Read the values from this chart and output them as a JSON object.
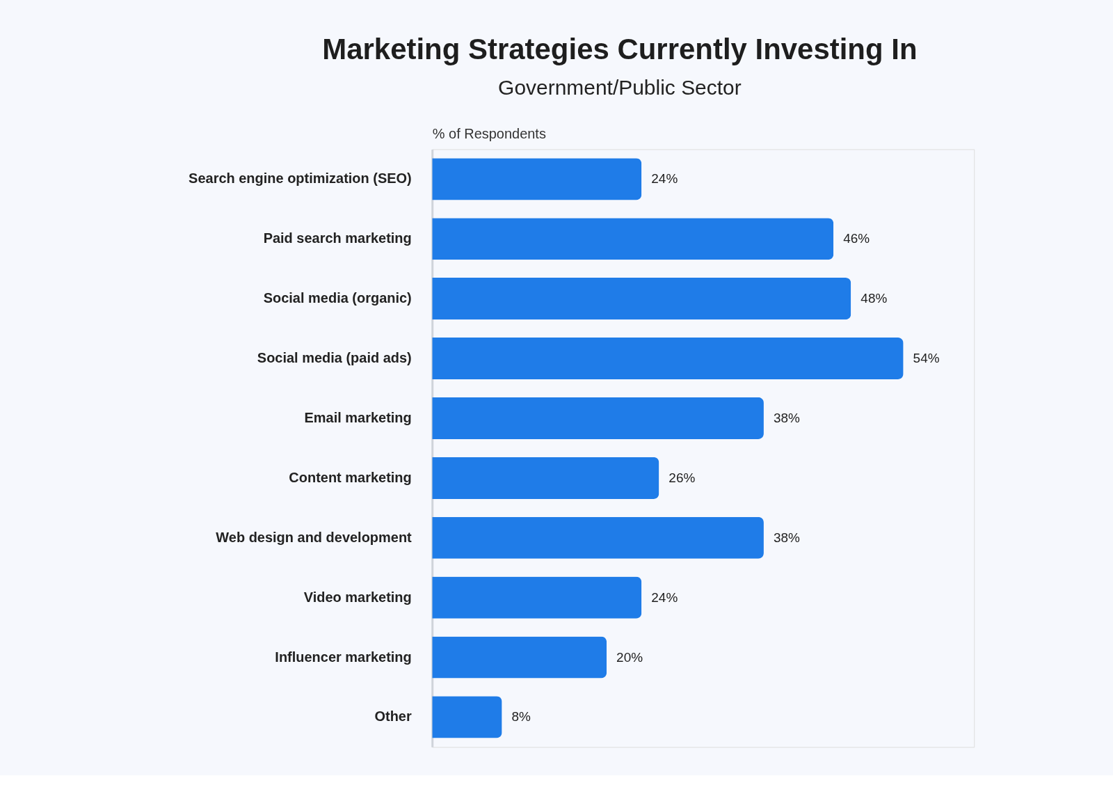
{
  "chart_data": {
    "type": "bar",
    "orientation": "horizontal",
    "title": "Marketing Strategies Currently Investing In",
    "subtitle": "Government/Public Sector",
    "xlabel": "% of Respondents",
    "categories": [
      "Search engine optimization (SEO)",
      "Paid search marketing",
      "Social media (organic)",
      "Social media (paid ads)",
      "Email marketing",
      "Content marketing",
      "Web design and development",
      "Video marketing",
      "Influencer marketing",
      "Other"
    ],
    "values": [
      24,
      46,
      48,
      54,
      38,
      26,
      38,
      24,
      20,
      8
    ],
    "value_labels": [
      "24%",
      "46%",
      "48%",
      "54%",
      "38%",
      "26%",
      "38%",
      "24%",
      "20%",
      "8%"
    ],
    "color": "#1f7ce8",
    "grid": false
  }
}
